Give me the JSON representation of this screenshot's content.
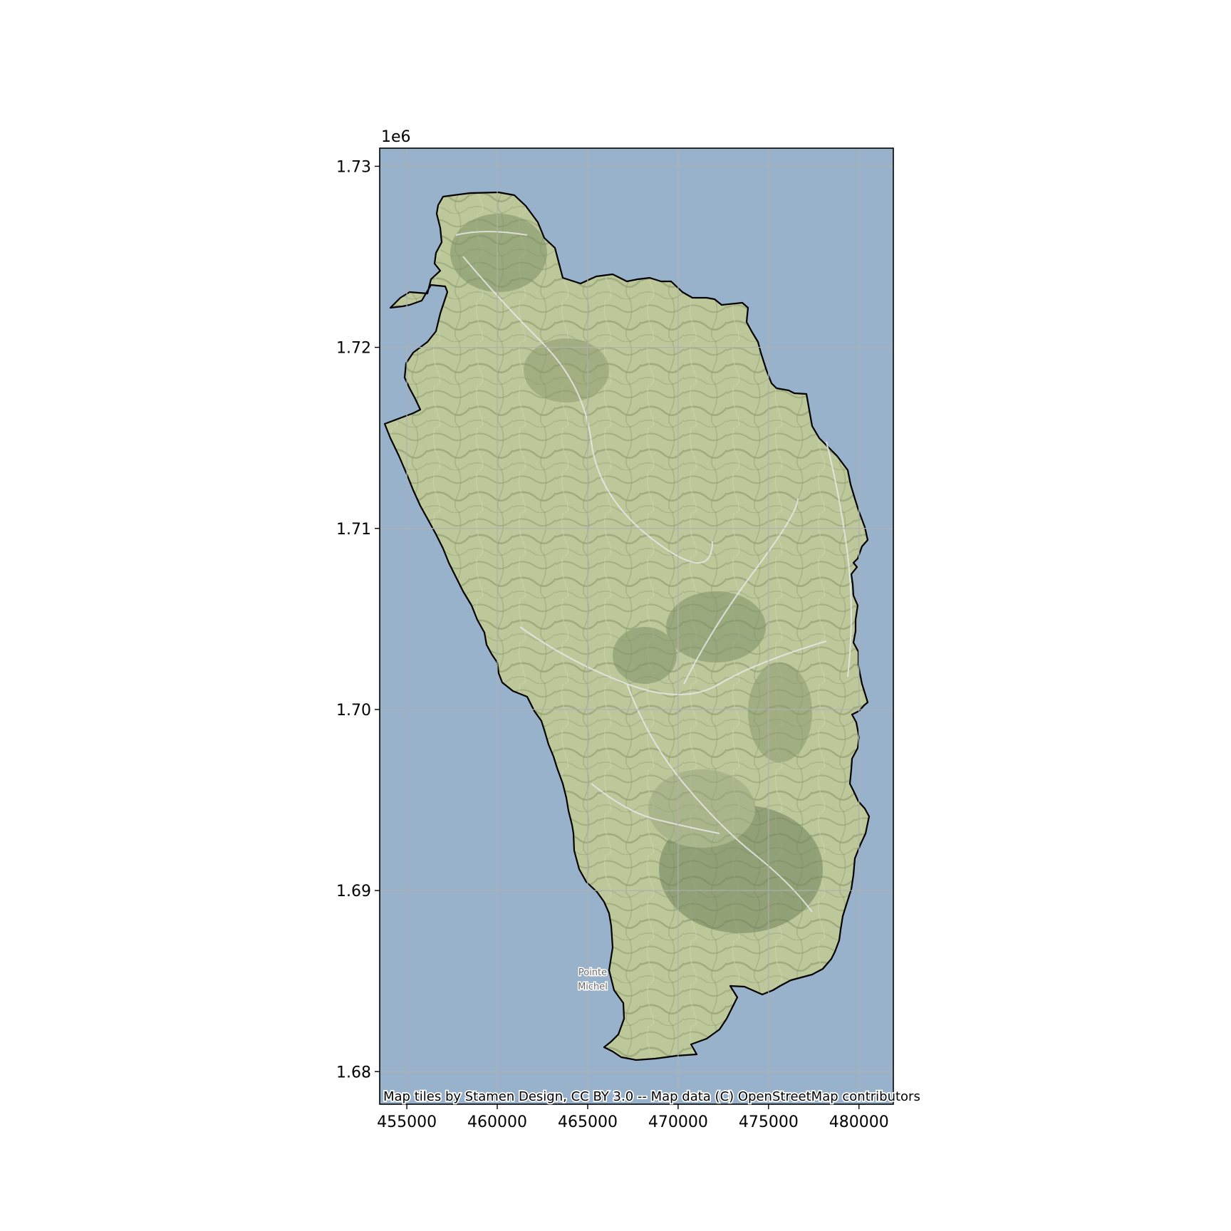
{
  "map": {
    "axis_offset_label": "1e6",
    "x_ticks": [
      {
        "value": 455000,
        "label": "455000"
      },
      {
        "value": 460000,
        "label": "460000"
      },
      {
        "value": 465000,
        "label": "465000"
      },
      {
        "value": 470000,
        "label": "470000"
      },
      {
        "value": 475000,
        "label": "475000"
      },
      {
        "value": 480000,
        "label": "480000"
      }
    ],
    "y_ticks": [
      {
        "value": 1730000,
        "label": "1.73"
      },
      {
        "value": 1720000,
        "label": "1.72"
      },
      {
        "value": 1710000,
        "label": "1.71"
      },
      {
        "value": 1700000,
        "label": "1.70"
      },
      {
        "value": 1690000,
        "label": "1.69"
      },
      {
        "value": 1680000,
        "label": "1.68"
      }
    ],
    "x_range": [
      453500,
      481900
    ],
    "y_range": [
      1678200,
      1731000
    ],
    "grid": true,
    "place_label_line1": "Pointe",
    "place_label_line2": "Michel",
    "attribution": "Map tiles by Stamen Design, CC BY 3.0 -- Map data (C) OpenStreetMap contributors",
    "colors": {
      "sea": "#98b2cc",
      "land": "#bcc79a",
      "land_dark": "#7f9166",
      "outline": "#000000",
      "grid": "#b0b0b0",
      "road": "#e8e8e8"
    }
  }
}
